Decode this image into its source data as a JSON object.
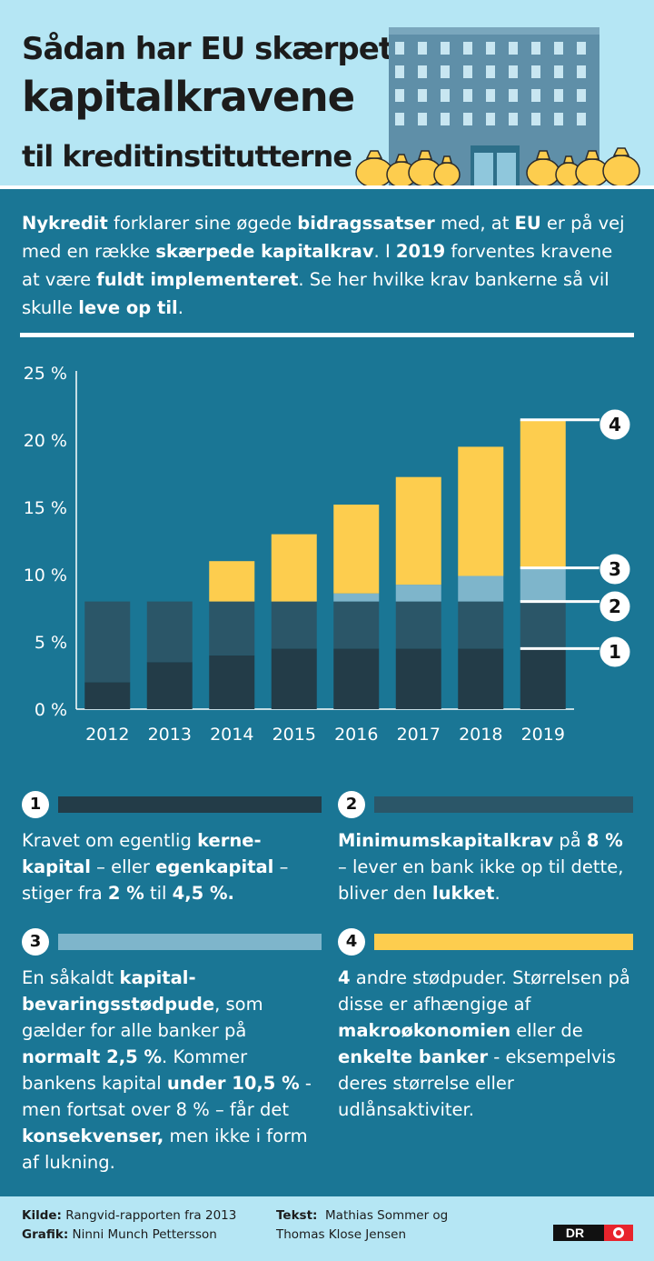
{
  "header": {
    "title_line1": "Sådan har EU skærpet",
    "title_line2": "kapitalkravene",
    "title_line3": "til kreditinstitutterne"
  },
  "intro": {
    "p1": "Nykredit",
    "p2": " forklarer sine øgede ",
    "p3": "bidragssatser",
    "p4": " med, at ",
    "p5": "EU",
    "p6": " er på vej med en række ",
    "p7": "skærpede kapitalkrav",
    "p8": ". I ",
    "p9": "2019",
    "p10": " forventes kravene at være ",
    "p11": "fuldt implementeret",
    "p12": ". Se her hvilke krav bankerne så vil skulle ",
    "p13": "leve op til",
    "p14": "."
  },
  "colors": {
    "background": "#1a7695",
    "header_bg": "#b5e6f4",
    "layer1": "#233c48",
    "layer2": "#2b5668",
    "layer3": "#7eb5cb",
    "layer4": "#fdcd4e"
  },
  "chart_data": {
    "type": "bar",
    "stacked": true,
    "categories": [
      "2012",
      "2013",
      "2014",
      "2015",
      "2016",
      "2017",
      "2018",
      "2019"
    ],
    "series": [
      {
        "name": "1",
        "values": [
          2,
          3.5,
          4,
          4.5,
          4.5,
          4.5,
          4.5,
          4.5
        ]
      },
      {
        "name": "2",
        "values": [
          6,
          4.5,
          4,
          3.5,
          3.5,
          3.5,
          3.5,
          3.5
        ]
      },
      {
        "name": "3",
        "values": [
          0,
          0,
          0,
          0,
          0.6,
          1.25,
          1.9,
          2.5
        ]
      },
      {
        "name": "4",
        "values": [
          0,
          0,
          3,
          5,
          6.6,
          8,
          9.6,
          11
        ]
      }
    ],
    "y_ticks": [
      "0 %",
      "5 %",
      "10 %",
      "15 %",
      "20 %",
      "25 %"
    ],
    "ylim": [
      0,
      25
    ],
    "callouts": [
      "1",
      "2",
      "3",
      "4"
    ],
    "title": "",
    "xlabel": "",
    "ylabel": ""
  },
  "legend": [
    {
      "num": "1",
      "segments": [
        {
          "t": "Kravet om egentlig ",
          "b": false
        },
        {
          "t": "kerne-kapital",
          "b": true
        },
        {
          "t": " – eller ",
          "b": false
        },
        {
          "t": "egenkapital",
          "b": true
        },
        {
          "t": " – stiger fra ",
          "b": false
        },
        {
          "t": "2 %",
          "b": true
        },
        {
          "t": " til ",
          "b": false
        },
        {
          "t": "4,5 %.",
          "b": true
        }
      ]
    },
    {
      "num": "2",
      "segments": [
        {
          "t": "Minimumskapitalkrav",
          "b": true
        },
        {
          "t": " på ",
          "b": false
        },
        {
          "t": "8 %",
          "b": true
        },
        {
          "t": " – lever en bank ikke op til dette, bliver den ",
          "b": false
        },
        {
          "t": "lukket",
          "b": true
        },
        {
          "t": ".",
          "b": false
        }
      ]
    },
    {
      "num": "3",
      "segments": [
        {
          "t": "En såkaldt ",
          "b": false
        },
        {
          "t": "kapital-bevaringsstødpude",
          "b": true
        },
        {
          "t": ", som gælder for alle banker på ",
          "b": false
        },
        {
          "t": "normalt 2,5 %",
          "b": true
        },
        {
          "t": ". Kommer bankens kapital ",
          "b": false
        },
        {
          "t": "under 10,5 %",
          "b": true
        },
        {
          "t": " - men fortsat over 8 % – får det ",
          "b": false
        },
        {
          "t": "konsekvenser,",
          "b": true
        },
        {
          "t": " men ikke i form af lukning.",
          "b": false
        }
      ]
    },
    {
      "num": "4",
      "segments": [
        {
          "t": "4",
          "b": true
        },
        {
          "t": " andre stødpuder. Størrelsen på disse er afhængige af ",
          "b": false
        },
        {
          "t": "makroøkonomien",
          "b": true
        },
        {
          "t": " eller de ",
          "b": false
        },
        {
          "t": "enkelte banker",
          "b": true
        },
        {
          "t": " - eksempelvis deres størrelse eller udlånsaktiviter.",
          "b": false
        }
      ]
    }
  ],
  "footer": {
    "kilde_label": "Kilde:",
    "kilde_value": "Rangvid-rapporten fra 2013",
    "grafik_label": "Grafik:",
    "grafik_value": "Ninni Munch Pettersson",
    "tekst_label": "Tekst:",
    "tekst_value": "Mathias Sommer og",
    "tekst_value2": "Thomas Klose Jensen",
    "logo_text": "DR"
  }
}
